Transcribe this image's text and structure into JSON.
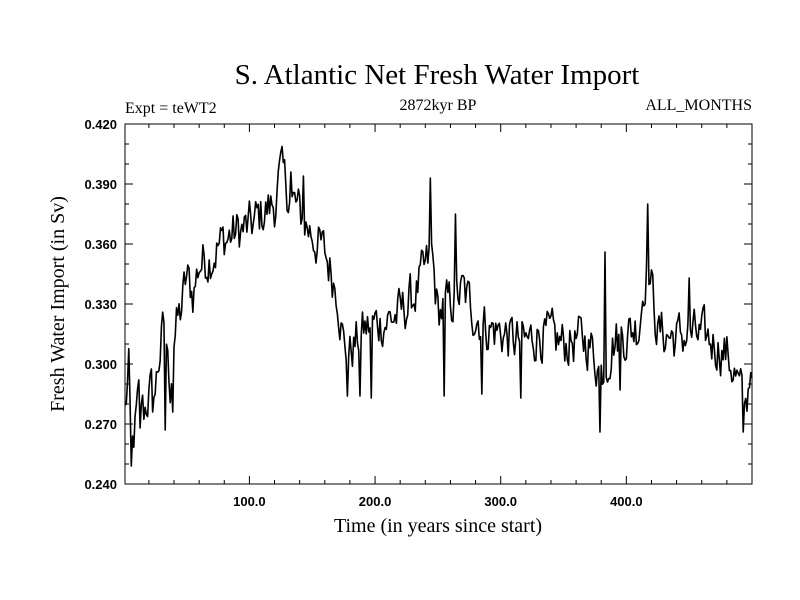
{
  "chart_data": {
    "type": "line",
    "title": "S. Atlantic Net Fresh Water Import",
    "subtitle_left": "Expt = teWT2",
    "subtitle_center": "2872kyr BP",
    "subtitle_right": "ALL_MONTHS",
    "xlabel": "Time (in years since start)",
    "ylabel": "Fresh Water Import (in Sv)",
    "xlim": [
      1,
      500
    ],
    "ylim": [
      0.24,
      0.42
    ],
    "x_ticks": [
      100,
      200,
      300,
      400
    ],
    "x_tick_labels": [
      "100.0",
      "200.0",
      "300.0",
      "400.0"
    ],
    "y_ticks": [
      0.24,
      0.27,
      0.3,
      0.33,
      0.36,
      0.39,
      0.42
    ],
    "y_tick_labels": [
      "0.240",
      "0.270",
      "0.300",
      "0.330",
      "0.360",
      "0.390",
      "0.420"
    ],
    "grid": false,
    "series": [
      {
        "name": "Fresh Water Import",
        "color": "#000000",
        "x_start": 1,
        "x_step": 1,
        "anchors": [
          [
            1,
            0.276
          ],
          [
            4,
            0.296
          ],
          [
            6,
            0.25
          ],
          [
            8,
            0.262
          ],
          [
            12,
            0.282
          ],
          [
            16,
            0.276
          ],
          [
            20,
            0.285
          ],
          [
            25,
            0.287
          ],
          [
            30,
            0.312
          ],
          [
            33,
            0.32
          ],
          [
            35,
            0.3
          ],
          [
            37,
            0.29
          ],
          [
            40,
            0.315
          ],
          [
            45,
            0.325
          ],
          [
            50,
            0.343
          ],
          [
            55,
            0.335
          ],
          [
            60,
            0.35
          ],
          [
            70,
            0.355
          ],
          [
            80,
            0.362
          ],
          [
            90,
            0.366
          ],
          [
            100,
            0.368
          ],
          [
            110,
            0.375
          ],
          [
            120,
            0.38
          ],
          [
            125,
            0.395
          ],
          [
            130,
            0.387
          ],
          [
            140,
            0.375
          ],
          [
            150,
            0.365
          ],
          [
            160,
            0.355
          ],
          [
            170,
            0.338
          ],
          [
            175,
            0.31
          ],
          [
            180,
            0.306
          ],
          [
            190,
            0.316
          ],
          [
            200,
            0.32
          ],
          [
            210,
            0.322
          ],
          [
            220,
            0.325
          ],
          [
            230,
            0.333
          ],
          [
            240,
            0.346
          ],
          [
            245,
            0.355
          ],
          [
            250,
            0.326
          ],
          [
            260,
            0.33
          ],
          [
            270,
            0.336
          ],
          [
            280,
            0.325
          ],
          [
            290,
            0.318
          ],
          [
            300,
            0.316
          ],
          [
            310,
            0.312
          ],
          [
            320,
            0.31
          ],
          [
            330,
            0.316
          ],
          [
            340,
            0.312
          ],
          [
            350,
            0.31
          ],
          [
            360,
            0.312
          ],
          [
            370,
            0.311
          ],
          [
            380,
            0.296
          ],
          [
            390,
            0.312
          ],
          [
            400,
            0.315
          ],
          [
            410,
            0.32
          ],
          [
            415,
            0.345
          ],
          [
            418,
            0.348
          ],
          [
            425,
            0.316
          ],
          [
            430,
            0.315
          ],
          [
            440,
            0.313
          ],
          [
            450,
            0.315
          ],
          [
            460,
            0.313
          ],
          [
            470,
            0.311
          ],
          [
            480,
            0.305
          ],
          [
            485,
            0.298
          ],
          [
            490,
            0.287
          ],
          [
            495,
            0.277
          ],
          [
            500,
            0.305
          ]
        ],
        "spikes": [
          [
            6,
            0.249
          ],
          [
            13,
            0.268
          ],
          [
            23,
            0.276
          ],
          [
            33,
            0.267
          ],
          [
            39,
            0.276
          ],
          [
            125,
            0.406
          ],
          [
            133,
            0.396
          ],
          [
            143,
            0.394
          ],
          [
            178,
            0.284
          ],
          [
            188,
            0.284
          ],
          [
            197,
            0.283
          ],
          [
            244,
            0.393
          ],
          [
            255,
            0.284
          ],
          [
            264,
            0.375
          ],
          [
            285,
            0.285
          ],
          [
            316,
            0.283
          ],
          [
            379,
            0.266
          ],
          [
            383,
            0.356
          ],
          [
            395,
            0.287
          ],
          [
            417,
            0.38
          ],
          [
            450,
            0.343
          ],
          [
            493,
            0.266
          ]
        ],
        "noise_amplitude": 0.022
      }
    ]
  }
}
